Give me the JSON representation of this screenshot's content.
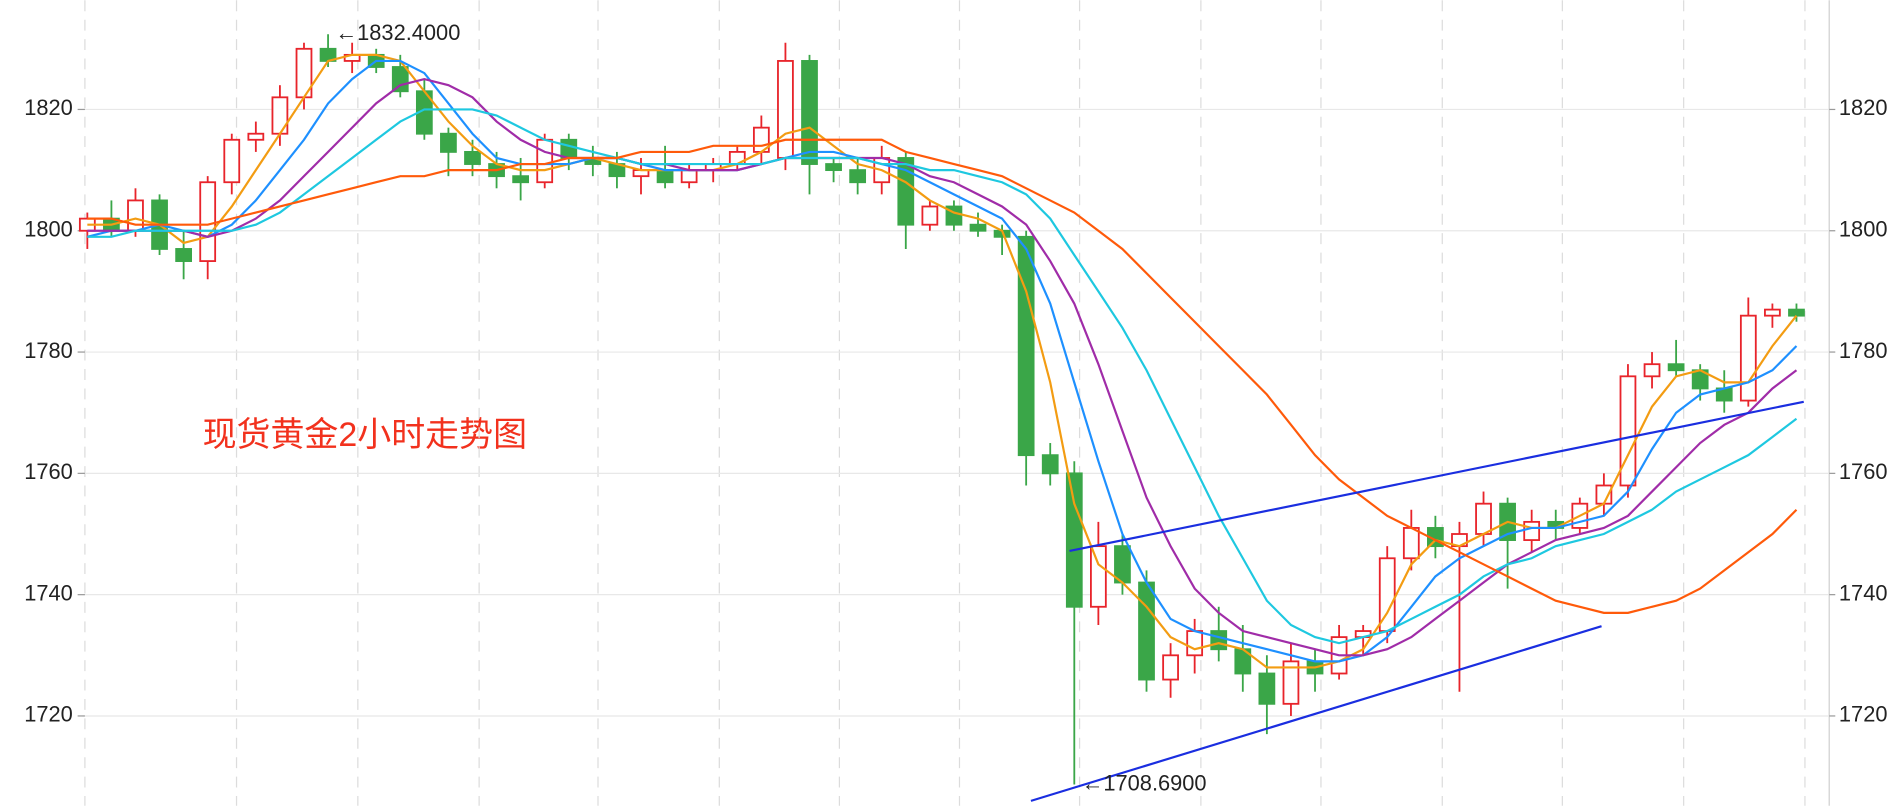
{
  "chart_data": {
    "type": "candlestick",
    "caption": "现货黄金2小时走势图",
    "ylim": [
      1705.6,
      1838
    ],
    "yticks": [
      1720,
      1740,
      1760,
      1780,
      1800,
      1820
    ],
    "grid": true,
    "up_color": "#e8242b",
    "down_color": "#3aa648",
    "caption_color": "#f2311d",
    "open": [
      1800,
      1802,
      1800,
      1805,
      1797,
      1795,
      1808,
      1815,
      1816,
      1822,
      1830,
      1828,
      1829,
      1827,
      1823,
      1816,
      1813,
      1811,
      1809,
      1808,
      1815,
      1812,
      1811,
      1809,
      1810,
      1808,
      1810,
      1811,
      1813,
      1812,
      1828,
      1811,
      1810,
      1808,
      1812,
      1801,
      1804,
      1801,
      1800,
      1799,
      1763,
      1760,
      1738,
      1748,
      1742,
      1726,
      1730,
      1734,
      1731,
      1727,
      1722,
      1729,
      1727,
      1733,
      1734,
      1746,
      1751,
      1748,
      1750,
      1755,
      1749,
      1752,
      1751,
      1755,
      1758,
      1776,
      1778,
      1777,
      1774,
      1772,
      1786,
      1787
    ],
    "high": [
      1803,
      1805,
      1807,
      1806,
      1800,
      1809,
      1816,
      1818,
      1824,
      1831,
      1832.4,
      1831,
      1830,
      1829,
      1825,
      1817,
      1815,
      1813,
      1812,
      1816,
      1816,
      1814,
      1813,
      1812,
      1814,
      1811,
      1812,
      1814,
      1819,
      1831,
      1829,
      1812,
      1812,
      1814,
      1813,
      1805,
      1805,
      1803,
      1801,
      1800,
      1765,
      1762,
      1752,
      1750,
      1744,
      1732,
      1736,
      1738,
      1735,
      1730,
      1732,
      1731,
      1735,
      1735,
      1748,
      1754,
      1753,
      1752,
      1757,
      1756,
      1754,
      1754,
      1756,
      1760,
      1778,
      1780,
      1782,
      1778,
      1777,
      1789,
      1788,
      1788
    ],
    "low": [
      1797,
      1799,
      1799,
      1796,
      1792,
      1792,
      1806,
      1813,
      1814,
      1820,
      1827,
      1826,
      1826,
      1822,
      1815,
      1809,
      1809,
      1807,
      1805,
      1807,
      1810,
      1809,
      1807,
      1806,
      1807,
      1807,
      1808,
      1810,
      1811,
      1810,
      1806,
      1808,
      1806,
      1806,
      1797,
      1800,
      1800,
      1799,
      1796,
      1758,
      1758,
      1708.69,
      1735,
      1740,
      1724,
      1723,
      1727,
      1729,
      1724,
      1717,
      1720,
      1724,
      1726,
      1730,
      1732,
      1744,
      1746,
      1724,
      1748,
      1741,
      1747,
      1749,
      1750,
      1753,
      1756,
      1774,
      1776,
      1772,
      1770,
      1771,
      1784,
      1785
    ],
    "close": [
      1802,
      1800,
      1805,
      1797,
      1795,
      1808,
      1815,
      1816,
      1822,
      1830,
      1828,
      1829,
      1827,
      1823,
      1816,
      1813,
      1811,
      1809,
      1808,
      1815,
      1812,
      1811,
      1809,
      1810,
      1808,
      1810,
      1811,
      1813,
      1817,
      1828,
      1811,
      1810,
      1808,
      1812,
      1801,
      1804,
      1801,
      1800,
      1799,
      1763,
      1760,
      1738,
      1748,
      1742,
      1726,
      1730,
      1734,
      1731,
      1727,
      1722,
      1729,
      1727,
      1733,
      1734,
      1746,
      1751,
      1748,
      1750,
      1755,
      1749,
      1752,
      1751,
      1755,
      1758,
      1776,
      1778,
      1777,
      1774,
      1772,
      1786,
      1787,
      1786
    ],
    "series": [
      {
        "color": "#f39c12",
        "values": [
          1801,
          1801,
          1802,
          1801,
          1798,
          1799,
          1804,
          1810,
          1816,
          1822,
          1828,
          1829,
          1829,
          1828,
          1823,
          1818,
          1814,
          1811,
          1810,
          1810,
          1811,
          1812,
          1811,
          1810,
          1810,
          1810,
          1810,
          1811,
          1813,
          1816,
          1817,
          1814,
          1811,
          1810,
          1808,
          1805,
          1803,
          1802,
          1800,
          1790,
          1775,
          1755,
          1745,
          1742,
          1738,
          1733,
          1731,
          1732,
          1731,
          1728,
          1728,
          1728,
          1729,
          1731,
          1737,
          1745,
          1749,
          1748,
          1750,
          1752,
          1751,
          1751,
          1753,
          1755,
          1763,
          1771,
          1776,
          1777,
          1775,
          1775,
          1781,
          1786
        ]
      },
      {
        "color": "#1e90ff",
        "values": [
          1799,
          1800,
          1800,
          1801,
          1800,
          1799,
          1801,
          1805,
          1810,
          1815,
          1821,
          1825,
          1828,
          1828,
          1826,
          1821,
          1816,
          1812,
          1811,
          1811,
          1811,
          1812,
          1812,
          1811,
          1810,
          1810,
          1810,
          1810,
          1811,
          1812,
          1813,
          1813,
          1812,
          1811,
          1810,
          1808,
          1806,
          1804,
          1802,
          1797,
          1788,
          1775,
          1762,
          1750,
          1742,
          1736,
          1734,
          1733,
          1732,
          1731,
          1730,
          1729,
          1729,
          1730,
          1733,
          1738,
          1743,
          1746,
          1748,
          1750,
          1751,
          1751,
          1752,
          1753,
          1757,
          1764,
          1770,
          1773,
          1774,
          1775,
          1777,
          1781
        ]
      },
      {
        "color": "#a02ca8",
        "values": [
          1800,
          1800,
          1800,
          1800,
          1800,
          1799,
          1800,
          1802,
          1805,
          1809,
          1813,
          1817,
          1821,
          1824,
          1825,
          1824,
          1822,
          1818,
          1815,
          1813,
          1812,
          1812,
          1812,
          1811,
          1811,
          1810,
          1810,
          1810,
          1811,
          1812,
          1812,
          1812,
          1812,
          1812,
          1811,
          1809,
          1808,
          1806,
          1804,
          1801,
          1795,
          1788,
          1778,
          1767,
          1756,
          1748,
          1741,
          1737,
          1734,
          1733,
          1732,
          1731,
          1730,
          1730,
          1731,
          1733,
          1736,
          1739,
          1742,
          1745,
          1747,
          1749,
          1750,
          1751,
          1753,
          1757,
          1761,
          1765,
          1768,
          1770,
          1774,
          1777
        ]
      },
      {
        "color": "#1ec8e0",
        "values": [
          1799,
          1799,
          1800,
          1800,
          1800,
          1800,
          1800,
          1801,
          1803,
          1806,
          1809,
          1812,
          1815,
          1818,
          1820,
          1820,
          1820,
          1819,
          1817,
          1815,
          1814,
          1813,
          1812,
          1811,
          1811,
          1811,
          1811,
          1811,
          1811,
          1812,
          1812,
          1812,
          1812,
          1811,
          1811,
          1810,
          1810,
          1809,
          1808,
          1806,
          1802,
          1796,
          1790,
          1784,
          1777,
          1769,
          1761,
          1753,
          1746,
          1739,
          1735,
          1733,
          1732,
          1733,
          1734,
          1736,
          1738,
          1740,
          1743,
          1745,
          1746,
          1748,
          1749,
          1750,
          1752,
          1754,
          1757,
          1759,
          1761,
          1763,
          1766,
          1769
        ]
      },
      {
        "color": "#ff5a0a",
        "values": [
          1802,
          1802,
          1801,
          1801,
          1801,
          1801,
          1802,
          1803,
          1804,
          1805,
          1806,
          1807,
          1808,
          1809,
          1809,
          1810,
          1810,
          1810,
          1811,
          1811,
          1812,
          1812,
          1812,
          1813,
          1813,
          1813,
          1814,
          1814,
          1814,
          1815,
          1815,
          1815,
          1815,
          1815,
          1813,
          1812,
          1811,
          1810,
          1809,
          1807,
          1805,
          1803,
          1800,
          1797,
          1793,
          1789,
          1785,
          1781,
          1777,
          1773,
          1768,
          1763,
          1759,
          1756,
          1753,
          1751,
          1749,
          1747,
          1745,
          1743,
          1741,
          1739,
          1738,
          1737,
          1737,
          1738,
          1739,
          1741,
          1744,
          1747,
          1750,
          1754
        ]
      }
    ],
    "trend_lines": [
      {
        "color": "#1a2ee0",
        "x": [
          40.8,
          71.3
        ],
        "y": [
          1747.2,
          1771.8
        ]
      },
      {
        "color": "#1a2ee0",
        "x": [
          39.2,
          62.9
        ],
        "y": [
          1706,
          1734.8
        ]
      }
    ],
    "annotations": [
      {
        "text": "←1832.4000",
        "value": 1832.4,
        "x": 10
      },
      {
        "text": "←1708.6900",
        "value": 1708.69,
        "x": 41
      }
    ]
  }
}
